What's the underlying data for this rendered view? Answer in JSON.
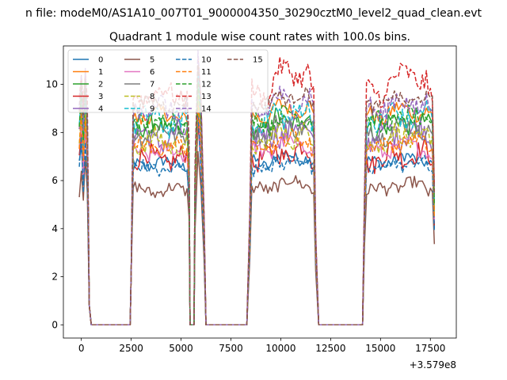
{
  "chart_data": {
    "type": "line",
    "suptitle": "n file: modeM0/AS1A10_007T01_9000004350_30290cztM0_level2_quad_clean.evt",
    "title": "Quadrant 1 module wise count rates with 100.0s bins.",
    "xlabel": "",
    "ylabel": "",
    "x_offset_label": "+3.579e8",
    "xlim": [
      -900,
      18800
    ],
    "ylim": [
      -0.55,
      11.6
    ],
    "x_ticks": [
      0,
      2500,
      5000,
      7500,
      10000,
      12500,
      15000,
      17500
    ],
    "x_tick_labels": [
      "0",
      "2500",
      "5000",
      "7500",
      "10000",
      "12500",
      "15000",
      "17500"
    ],
    "y_ticks": [
      0,
      2,
      4,
      6,
      8,
      10
    ],
    "y_tick_labels": [
      "0",
      "2",
      "4",
      "6",
      "8",
      "10"
    ],
    "legend_position": "top-left",
    "legend_columns": 4,
    "bin_size_s": 100,
    "segments": [
      [
        0,
        250
      ],
      [
        2550,
        5400
      ],
      [
        5900,
        6100
      ],
      [
        8550,
        11700
      ],
      [
        14250,
        17700
      ]
    ],
    "transition_points": [
      [
        -100,
        7.5
      ],
      [
        400,
        0.8
      ],
      [
        500,
        0
      ],
      [
        2400,
        0
      ],
      [
        2500,
        2.2
      ],
      [
        5450,
        0
      ],
      [
        5650,
        0
      ],
      [
        5700,
        6.5
      ],
      [
        6200,
        1.0
      ],
      [
        6300,
        0
      ],
      [
        8300,
        0
      ],
      [
        8450,
        2.0
      ],
      [
        11800,
        1.0
      ],
      [
        11900,
        0
      ],
      [
        14100,
        0
      ],
      [
        14200,
        3.5
      ],
      [
        17800,
        3.5
      ]
    ],
    "grid": false,
    "series": [
      {
        "name": "0",
        "color": "#1f77b4",
        "dash": "solid",
        "level": 6.7
      },
      {
        "name": "1",
        "color": "#ff7f0e",
        "dash": "solid",
        "level": 8.7
      },
      {
        "name": "2",
        "color": "#2ca02c",
        "dash": "solid",
        "level": 8.2
      },
      {
        "name": "3",
        "color": "#d62728",
        "dash": "solid",
        "level": 6.9
      },
      {
        "name": "4",
        "color": "#9467bd",
        "dash": "solid",
        "level": 7.8
      },
      {
        "name": "5",
        "color": "#8c564b",
        "dash": "solid",
        "level": 5.6
      },
      {
        "name": "6",
        "color": "#e377c2",
        "dash": "solid",
        "level": 7.2
      },
      {
        "name": "7",
        "color": "#7f7f7f",
        "dash": "solid",
        "level": 8.0
      },
      {
        "name": "8",
        "color": "#bcbd22",
        "dash": "dashed",
        "level": 7.6
      },
      {
        "name": "9",
        "color": "#17becf",
        "dash": "dashed",
        "level": 8.5
      },
      {
        "name": "10",
        "color": "#1f77b4",
        "dash": "dashed",
        "level": 6.5
      },
      {
        "name": "11",
        "color": "#ff7f0e",
        "dash": "dashed",
        "level": 7.4
      },
      {
        "name": "12",
        "color": "#2ca02c",
        "dash": "dashed",
        "level": 8.4
      },
      {
        "name": "13",
        "color": "#d62728",
        "dash": "dashed",
        "level": 9.6
      },
      {
        "name": "14",
        "color": "#9467bd",
        "dash": "dashed",
        "level": 9.0
      },
      {
        "name": "15",
        "color": "#8c564b",
        "dash": "dashed",
        "level": 9.2
      }
    ]
  }
}
